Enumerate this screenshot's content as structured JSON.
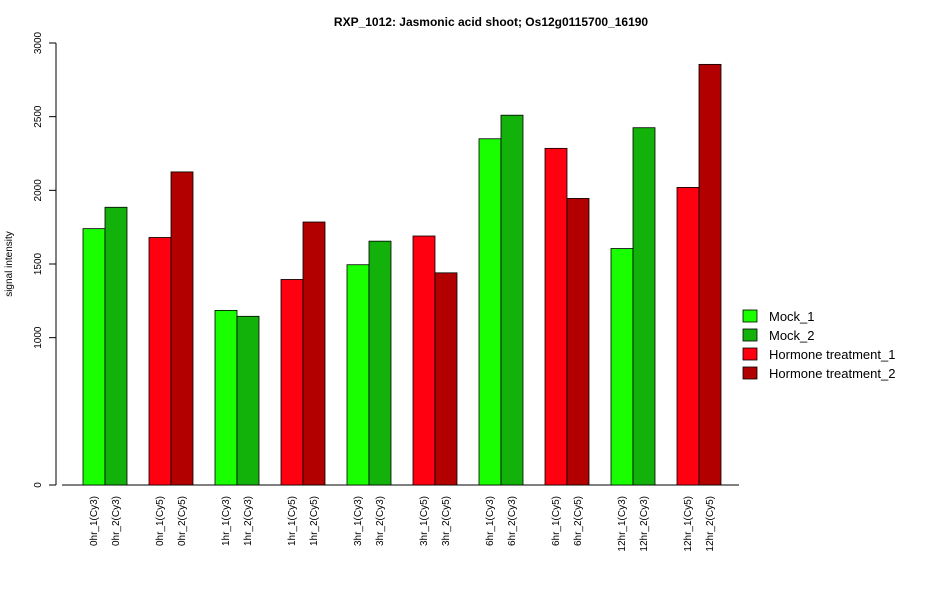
{
  "chart_data": {
    "type": "bar",
    "title": "RXP_1012: Jasmonic acid shoot; Os12g0115700_16190",
    "xlabel": "",
    "ylabel": "signal intensity",
    "ylim": [
      0,
      3000
    ],
    "y_ticks": [
      0,
      1000,
      1500,
      2000,
      2500,
      3000
    ],
    "grid": false,
    "legend_position": "right",
    "series": [
      {
        "name": "Mock_1",
        "color": "#19ff00"
      },
      {
        "name": "Mock_2",
        "color": "#13b20a"
      },
      {
        "name": "Hormone treatment_1",
        "color": "#ff0010"
      },
      {
        "name": "Hormone treatment_2",
        "color": "#b20000"
      }
    ],
    "bars": [
      {
        "label": "0hr_1(Cy3)",
        "value": 1740,
        "series": 0
      },
      {
        "label": "0hr_2(Cy3)",
        "value": 1885,
        "series": 1
      },
      {
        "label": "0hr_1(Cy5)",
        "value": 1680,
        "series": 2
      },
      {
        "label": "0hr_2(Cy5)",
        "value": 2125,
        "series": 3
      },
      {
        "label": "1hr_1(Cy3)",
        "value": 1185,
        "series": 0
      },
      {
        "label": "1hr_2(Cy3)",
        "value": 1145,
        "series": 1
      },
      {
        "label": "1hr_1(Cy5)",
        "value": 1395,
        "series": 2
      },
      {
        "label": "1hr_2(Cy5)",
        "value": 1785,
        "series": 3
      },
      {
        "label": "3hr_1(Cy3)",
        "value": 1495,
        "series": 0
      },
      {
        "label": "3hr_2(Cy3)",
        "value": 1655,
        "series": 1
      },
      {
        "label": "3hr_1(Cy5)",
        "value": 1690,
        "series": 2
      },
      {
        "label": "3hr_2(Cy5)",
        "value": 1440,
        "series": 3
      },
      {
        "label": "6hr_1(Cy3)",
        "value": 2350,
        "series": 0
      },
      {
        "label": "6hr_2(Cy3)",
        "value": 2510,
        "series": 1
      },
      {
        "label": "6hr_1(Cy5)",
        "value": 2285,
        "series": 2
      },
      {
        "label": "6hr_2(Cy5)",
        "value": 1945,
        "series": 3
      },
      {
        "label": "12hr_1(Cy3)",
        "value": 1605,
        "series": 0
      },
      {
        "label": "12hr_2(Cy3)",
        "value": 2425,
        "series": 1
      },
      {
        "label": "12hr_1(Cy5)",
        "value": 2020,
        "series": 2
      },
      {
        "label": "12hr_2(Cy5)",
        "value": 2855,
        "series": 3
      }
    ]
  }
}
